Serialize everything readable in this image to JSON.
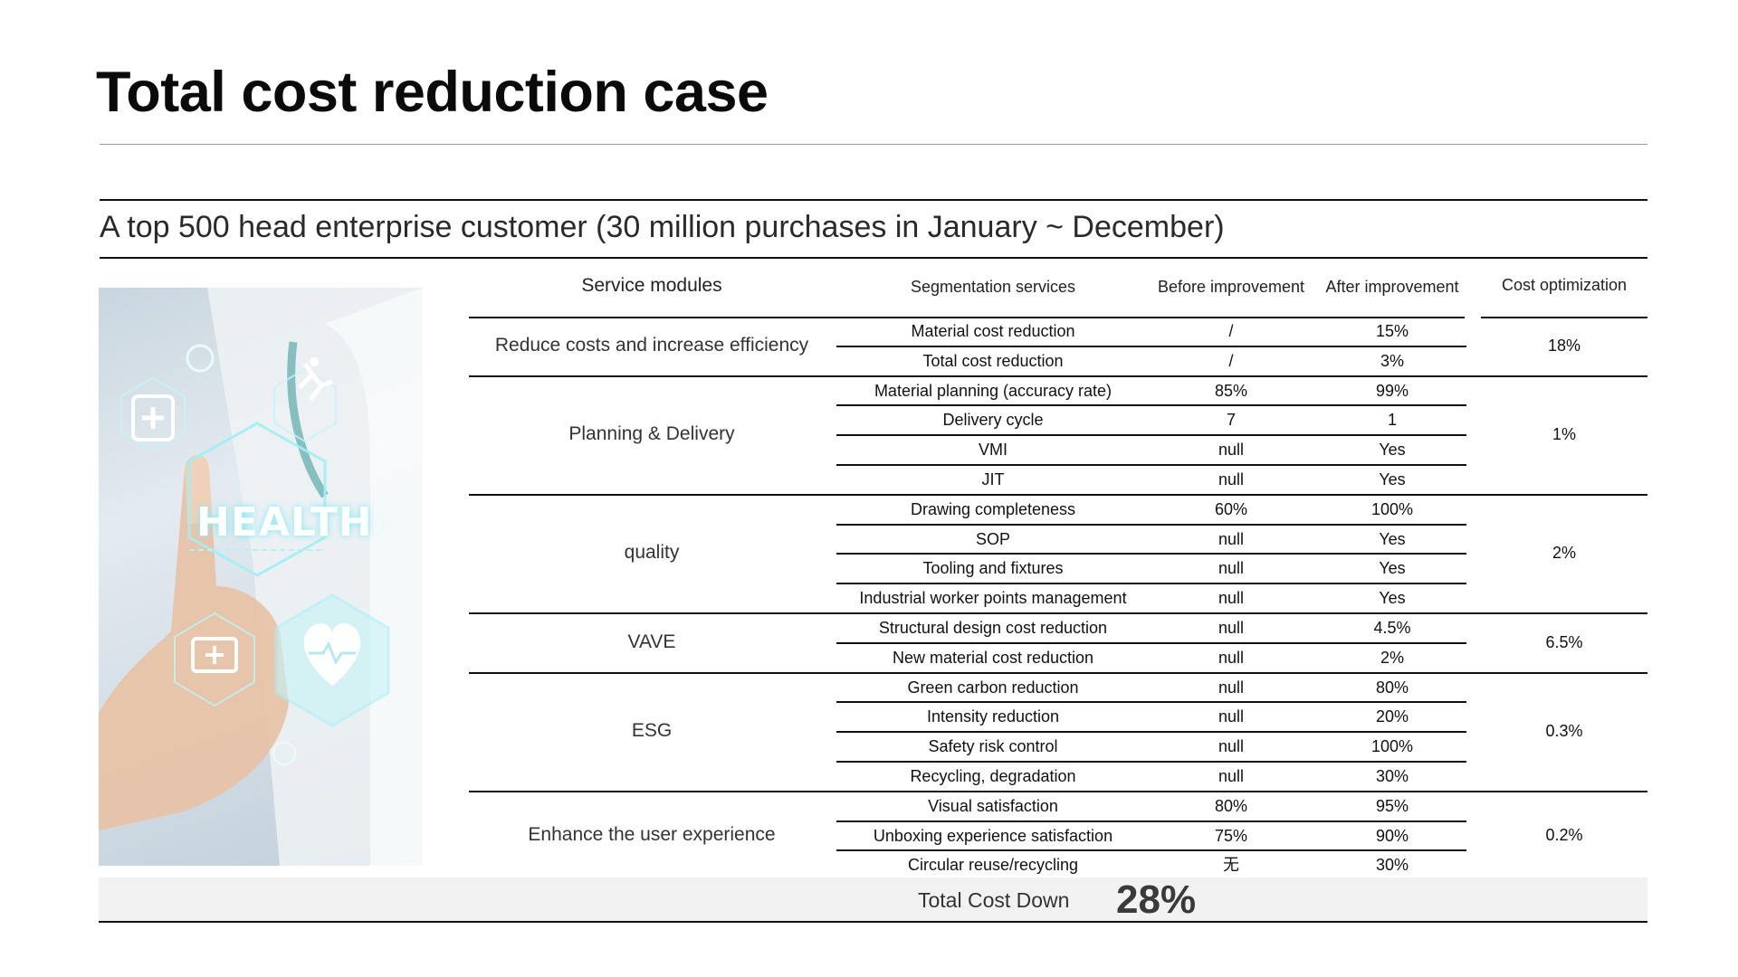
{
  "slide": {
    "title": "Total cost reduction case",
    "subtitle": "A top 500 head enterprise customer (30 million purchases in January ~ December)",
    "image_text": "HEALTH"
  },
  "table": {
    "headers": {
      "module": "Service modules",
      "segment": "Segmentation services",
      "before": "Before improvement",
      "after": "After improvement",
      "optimization": "Cost optimization"
    },
    "groups": [
      {
        "module": "Reduce costs and increase efficiency",
        "optimization": "18%",
        "rows": [
          {
            "service": "Material cost reduction",
            "before": "/",
            "after": "15%"
          },
          {
            "service": "Total cost reduction",
            "before": "/",
            "after": "3%"
          }
        ]
      },
      {
        "module": "Planning & Delivery",
        "optimization": "1%",
        "rows": [
          {
            "service": "Material planning (accuracy rate)",
            "before": "85%",
            "after": "99%"
          },
          {
            "service": "Delivery cycle",
            "before": "7",
            "after": "1"
          },
          {
            "service": "VMI",
            "before": "null",
            "after": "Yes"
          },
          {
            "service": "JIT",
            "before": "null",
            "after": "Yes"
          }
        ]
      },
      {
        "module": "quality",
        "optimization": "2%",
        "rows": [
          {
            "service": "Drawing completeness",
            "before": "60%",
            "after": "100%"
          },
          {
            "service": "SOP",
            "before": "null",
            "after": "Yes"
          },
          {
            "service": "Tooling and fixtures",
            "before": "null",
            "after": "Yes"
          },
          {
            "service": "Industrial worker points management",
            "before": "null",
            "after": "Yes"
          }
        ]
      },
      {
        "module": "VAVE",
        "optimization": "6.5%",
        "rows": [
          {
            "service": "Structural design cost reduction",
            "before": "null",
            "after": "4.5%"
          },
          {
            "service": "New material cost reduction",
            "before": "null",
            "after": "2%"
          }
        ]
      },
      {
        "module": "ESG",
        "optimization": "0.3%",
        "rows": [
          {
            "service": "Green carbon reduction",
            "before": "null",
            "after": "80%"
          },
          {
            "service": "Intensity reduction",
            "before": "null",
            "after": "20%"
          },
          {
            "service": "Safety risk control",
            "before": "null",
            "after": "100%"
          },
          {
            "service": "Recycling, degradation",
            "before": "null",
            "after": "30%"
          }
        ]
      },
      {
        "module": "Enhance the user experience",
        "optimization": "0.2%",
        "rows": [
          {
            "service": "Visual satisfaction",
            "before": "80%",
            "after": "95%"
          },
          {
            "service": "Unboxing experience satisfaction",
            "before": "75%",
            "after": "90%"
          },
          {
            "service": "Circular reuse/recycling",
            "before": "无",
            "after": "30%"
          }
        ]
      }
    ],
    "total": {
      "label": "Total Cost Down",
      "value": "28%"
    }
  }
}
